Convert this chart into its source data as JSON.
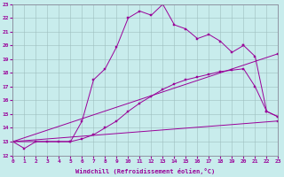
{
  "bg_color": "#c8ecec",
  "line_color": "#990099",
  "xlabel": "Windchill (Refroidissement éolien,°C)",
  "xlim": [
    0,
    23
  ],
  "ylim": [
    12,
    23
  ],
  "xticks": [
    0,
    1,
    2,
    3,
    4,
    5,
    6,
    7,
    8,
    9,
    10,
    11,
    12,
    13,
    14,
    15,
    16,
    17,
    18,
    19,
    20,
    21,
    22,
    23
  ],
  "yticks": [
    12,
    13,
    14,
    15,
    16,
    17,
    18,
    19,
    20,
    21,
    22,
    23
  ],
  "curves": [
    {
      "x": [
        0,
        1,
        2,
        3,
        4,
        5,
        6,
        7,
        8,
        9,
        10,
        11,
        12,
        13,
        14,
        15,
        16,
        17,
        18,
        19,
        20
      ],
      "y": [
        13,
        12.5,
        13,
        13,
        13,
        13,
        14.5,
        17.5,
        18.3,
        19.9,
        22.0,
        22.5,
        22.2,
        23.0,
        21.5,
        21.2,
        20.5,
        20.8,
        20.3,
        19.5,
        20.0
      ]
    },
    {
      "x": [
        20,
        21,
        22,
        23
      ],
      "y": [
        20.0,
        19.2,
        15.2,
        14.8
      ]
    },
    {
      "x": [
        0,
        5,
        6,
        7,
        8,
        9,
        10,
        11,
        12,
        13,
        14,
        15,
        16,
        17,
        18,
        19,
        20,
        21,
        22,
        23
      ],
      "y": [
        13,
        13,
        13.2,
        13.5,
        14.0,
        14.5,
        15.2,
        15.8,
        16.3,
        16.8,
        17.2,
        17.5,
        17.7,
        17.9,
        18.1,
        18.2,
        18.3,
        17.0,
        15.2,
        14.8
      ]
    },
    {
      "x": [
        0,
        23
      ],
      "y": [
        13,
        19.4
      ]
    },
    {
      "x": [
        0,
        23
      ],
      "y": [
        13,
        14.5
      ]
    }
  ]
}
